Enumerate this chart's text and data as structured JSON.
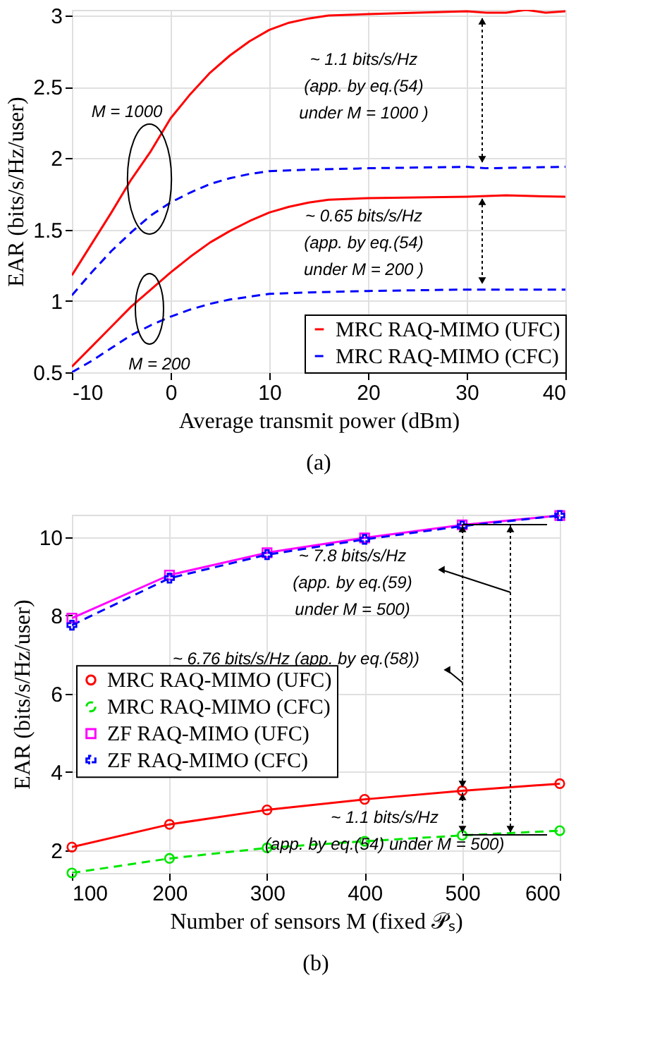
{
  "chart_data": [
    {
      "type": "line",
      "title": "(a)",
      "xlabel": "Average transmit power (dBm)",
      "ylabel": "EAR (bits/s/Hz/user)",
      "xlim": [
        -10,
        40
      ],
      "xticks": [
        -10,
        0,
        10,
        20,
        30,
        40
      ],
      "ylim": [
        0.5,
        3.04
      ],
      "yticks": [
        0.5,
        1,
        1.5,
        2,
        2.5,
        3
      ],
      "grid": true,
      "legend": "bottom right",
      "marker": "none",
      "series": [
        {
          "name": "MRC RAQ-MIMO (UFC)",
          "color": "#ff0000",
          "line_style": "solid",
          "x": [
            -10,
            -8,
            -6,
            -4,
            -2,
            0,
            2,
            4,
            6,
            8,
            10,
            12,
            14,
            16,
            20,
            25,
            30,
            32,
            34,
            36,
            38,
            40
          ],
          "values": [
            1.18,
            1.4,
            1.62,
            1.85,
            2.05,
            2.28,
            2.45,
            2.6,
            2.72,
            2.82,
            2.9,
            2.95,
            2.98,
            3.0,
            3.01,
            3.02,
            3.03,
            3.02,
            3.02,
            3.04,
            3.02,
            3.03
          ]
        },
        {
          "name": "MRC RAQ-MIMO (CFC)",
          "color": "#0000ff",
          "line_style": "dashed",
          "x": [
            -10,
            -8,
            -6,
            -4,
            -2,
            0,
            2,
            4,
            6,
            8,
            10,
            14,
            20,
            30,
            32,
            40
          ],
          "values": [
            1.04,
            1.2,
            1.35,
            1.48,
            1.6,
            1.69,
            1.76,
            1.82,
            1.86,
            1.89,
            1.91,
            1.92,
            1.93,
            1.94,
            1.93,
            1.94
          ]
        },
        {
          "color": "#ff0000",
          "line_style": "solid",
          "x": [
            -10,
            -8,
            -6,
            -4,
            -2,
            0,
            2,
            4,
            6,
            8,
            10,
            12,
            14,
            16,
            20,
            30,
            34,
            40
          ],
          "values": [
            0.54,
            0.68,
            0.82,
            0.96,
            1.08,
            1.2,
            1.31,
            1.41,
            1.49,
            1.56,
            1.62,
            1.66,
            1.69,
            1.71,
            1.72,
            1.73,
            1.74,
            1.73
          ]
        },
        {
          "color": "#0000ff",
          "line_style": "dashed",
          "x": [
            -10,
            -8,
            -6,
            -4,
            -2,
            0,
            2,
            4,
            6,
            8,
            10,
            14,
            20,
            30,
            40
          ],
          "values": [
            0.5,
            0.58,
            0.67,
            0.76,
            0.83,
            0.89,
            0.94,
            0.98,
            1.01,
            1.03,
            1.05,
            1.06,
            1.07,
            1.08,
            1.08
          ]
        }
      ],
      "annotations": [
        "~ 1.1 bits/s/Hz\n(app. by eq.(54)\nunder M = 1000 )",
        "~ 0.65 bits/s/Hz\n(app. by eq.(54)\nunder M = 200 )",
        "M = 1000",
        "M = 200"
      ]
    },
    {
      "type": "line",
      "title": "(b)",
      "xlabel": "Number of sensors M (fixed 𝒫ₛ)",
      "ylabel": "EAR (bits/s/Hz/user)",
      "xlim": [
        100,
        600
      ],
      "xticks": [
        100,
        200,
        300,
        400,
        500,
        600
      ],
      "ylim": [
        1.42,
        10.57
      ],
      "yticks": [
        2,
        4,
        6,
        8,
        10
      ],
      "grid": true,
      "legend": "left",
      "series": [
        {
          "name": "MRC RAQ-MIMO (UFC)",
          "color": "#ff0000",
          "line_style": "solid",
          "marker": "circle",
          "x": [
            100,
            200,
            300,
            400,
            500,
            600
          ],
          "values": [
            2.08,
            2.66,
            3.03,
            3.3,
            3.52,
            3.7
          ]
        },
        {
          "name": "MRC RAQ-MIMO (CFC)",
          "color": "#00e600",
          "line_style": "dashed",
          "marker": "circle",
          "x": [
            100,
            200,
            300,
            400,
            500,
            600
          ],
          "values": [
            1.42,
            1.79,
            2.06,
            2.23,
            2.38,
            2.5
          ]
        },
        {
          "name": "ZF RAQ-MIMO (UFC)",
          "color": "#ff00ff",
          "line_style": "solid",
          "marker": "square",
          "x": [
            100,
            200,
            300,
            400,
            500,
            600
          ],
          "values": [
            7.93,
            9.03,
            9.6,
            9.98,
            10.31,
            10.55
          ]
        },
        {
          "name": "ZF RAQ-MIMO (CFC)",
          "color": "#0000ff",
          "line_style": "dashed",
          "marker": "cross",
          "x": [
            100,
            200,
            300,
            400,
            500,
            600
          ],
          "values": [
            7.75,
            8.95,
            9.55,
            9.94,
            10.28,
            10.55
          ]
        }
      ],
      "annotations": [
        "~ 7.8 bits/s/Hz\n(app. by eq.(59)\nunder M = 500)",
        "~ 6.76 bits/s/Hz (app. by eq.(58))",
        {
          "text": "~ 1.1 bits/s/Hz\n(app. by eq.(54) under M = 500)",
          "x": 500,
          "y": 2.38
        }
      ]
    }
  ]
}
